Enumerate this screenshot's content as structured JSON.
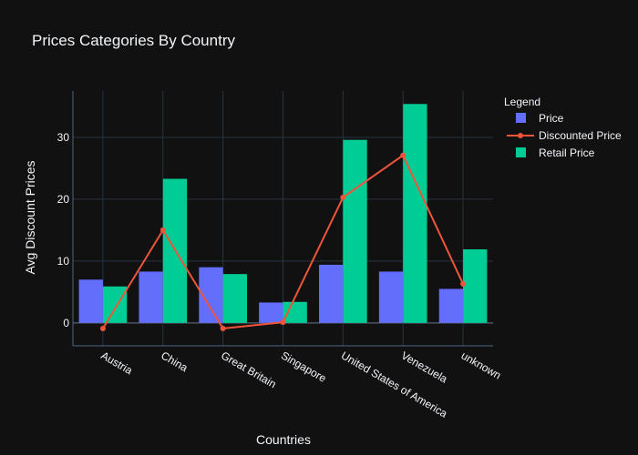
{
  "chart_data": {
    "type": "bar",
    "title": "Prices Categories By Country",
    "xlabel": "Countries",
    "ylabel": "Avg Discount Prices",
    "categories": [
      "Austria",
      "China",
      "Great Britain",
      "Singapore",
      "United States of America",
      "Venezuela",
      "unknown"
    ],
    "ylim": [
      -3.7,
      37.5
    ],
    "yticks": [
      0,
      10,
      20,
      30
    ],
    "grid": true,
    "legend": {
      "title": "Legend",
      "placement": "right"
    },
    "series": [
      {
        "name": "Price",
        "kind": "bar",
        "color": "#636efa",
        "values": [
          7.0,
          8.3,
          9.0,
          3.3,
          9.4,
          8.3,
          5.5
        ]
      },
      {
        "name": "Discounted Price",
        "kind": "line",
        "color": "#ef553b",
        "values": [
          -0.9,
          15.0,
          -0.9,
          0.1,
          20.3,
          27.1,
          6.3
        ]
      },
      {
        "name": "Retail Price",
        "kind": "bar",
        "color": "#00cc96",
        "values": [
          5.9,
          23.3,
          7.9,
          3.4,
          29.6,
          35.4,
          11.9
        ]
      }
    ]
  }
}
